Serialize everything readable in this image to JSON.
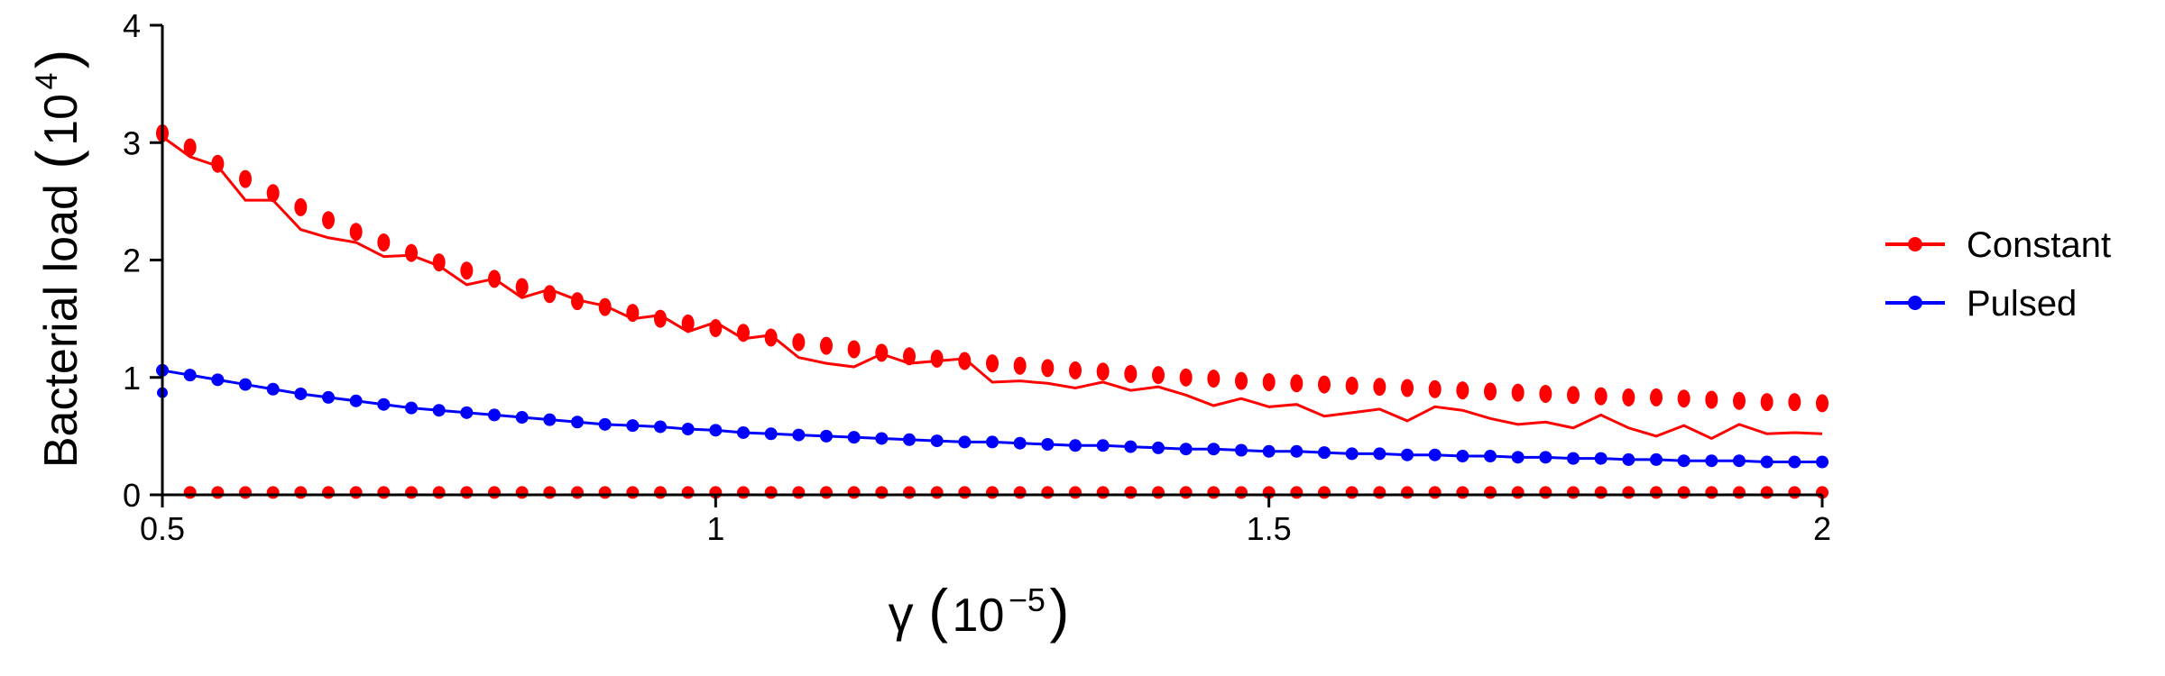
{
  "chart_data": {
    "type": "line",
    "xlabel": {
      "symbol": "γ",
      "open": "(",
      "base": "10",
      "exponent": "−5",
      "close": ")"
    },
    "ylabel": {
      "text": "Bacterial load",
      "open": "(",
      "base": "10",
      "exponent": "4",
      "close": ")"
    },
    "xlim": [
      0.5,
      2
    ],
    "ylim": [
      0,
      4
    ],
    "x_ticks": [
      0.5,
      1,
      1.5,
      2
    ],
    "x_tick_labels": [
      "0.5",
      "1",
      "1.5",
      "2"
    ],
    "y_ticks": [
      0,
      1,
      2,
      3,
      4
    ],
    "y_tick_labels": [
      "0",
      "1",
      "2",
      "3",
      "4"
    ],
    "grid": false,
    "legend_position": "right",
    "x": [
      0.5,
      0.525,
      0.55,
      0.575,
      0.6,
      0.625,
      0.65,
      0.675,
      0.7,
      0.725,
      0.75,
      0.775,
      0.8,
      0.825,
      0.85,
      0.875,
      0.9,
      0.925,
      0.95,
      0.975,
      1.0,
      1.025,
      1.05,
      1.075,
      1.1,
      1.125,
      1.15,
      1.175,
      1.2,
      1.225,
      1.25,
      1.275,
      1.3,
      1.325,
      1.35,
      1.375,
      1.4,
      1.425,
      1.45,
      1.475,
      1.5,
      1.525,
      1.55,
      1.575,
      1.6,
      1.625,
      1.65,
      1.675,
      1.7,
      1.725,
      1.75,
      1.775,
      1.8,
      1.825,
      1.85,
      1.875,
      1.9,
      1.925,
      1.95,
      1.975,
      2.0
    ],
    "series": [
      {
        "name": "Constant",
        "color": "#ff0000",
        "line_values": [
          3.05,
          2.88,
          2.8,
          2.51,
          2.51,
          2.26,
          2.19,
          2.15,
          2.03,
          2.04,
          1.95,
          1.79,
          1.84,
          1.68,
          1.75,
          1.66,
          1.61,
          1.5,
          1.53,
          1.39,
          1.47,
          1.33,
          1.36,
          1.17,
          1.12,
          1.09,
          1.2,
          1.12,
          1.14,
          1.16,
          0.96,
          0.97,
          0.95,
          0.91,
          0.96,
          0.89,
          0.92,
          0.85,
          0.76,
          0.82,
          0.75,
          0.77,
          0.67,
          0.7,
          0.73,
          0.63,
          0.75,
          0.72,
          0.65,
          0.6,
          0.62,
          0.57,
          0.68,
          0.57,
          0.5,
          0.59,
          0.48,
          0.6,
          0.52,
          0.53,
          0.52
        ],
        "upper_markers": [
          3.08,
          2.96,
          2.82,
          2.69,
          2.57,
          2.45,
          2.34,
          2.24,
          2.15,
          2.06,
          1.98,
          1.91,
          1.84,
          1.77,
          1.71,
          1.65,
          1.6,
          1.55,
          1.5,
          1.46,
          1.42,
          1.38,
          1.34,
          1.3,
          1.27,
          1.24,
          1.21,
          1.18,
          1.16,
          1.14,
          1.12,
          1.1,
          1.08,
          1.06,
          1.05,
          1.03,
          1.02,
          1.0,
          0.99,
          0.97,
          0.96,
          0.95,
          0.94,
          0.93,
          0.92,
          0.91,
          0.9,
          0.89,
          0.88,
          0.87,
          0.86,
          0.85,
          0.84,
          0.83,
          0.83,
          0.82,
          0.81,
          0.8,
          0.79,
          0.79,
          0.78
        ],
        "lower_markers": [
          0.02,
          0.02,
          0.02,
          0.02,
          0.02,
          0.02,
          0.02,
          0.02,
          0.02,
          0.02,
          0.02,
          0.02,
          0.02,
          0.02,
          0.02,
          0.02,
          0.02,
          0.02,
          0.02,
          0.02,
          0.02,
          0.02,
          0.02,
          0.02,
          0.02,
          0.02,
          0.02,
          0.02,
          0.02,
          0.02,
          0.02,
          0.02,
          0.02,
          0.02,
          0.02,
          0.02,
          0.02,
          0.02,
          0.02,
          0.02,
          0.02,
          0.02,
          0.02,
          0.02,
          0.02,
          0.02,
          0.02,
          0.02,
          0.02,
          0.02,
          0.02,
          0.02,
          0.02,
          0.02,
          0.02,
          0.02,
          0.02,
          0.02,
          0.02,
          0.02,
          0.02
        ]
      },
      {
        "name": "Pulsed",
        "color": "#0000ff",
        "line_values": [
          1.06,
          1.02,
          0.98,
          0.94,
          0.9,
          0.86,
          0.83,
          0.8,
          0.77,
          0.74,
          0.72,
          0.7,
          0.68,
          0.66,
          0.64,
          0.62,
          0.6,
          0.59,
          0.58,
          0.56,
          0.55,
          0.53,
          0.52,
          0.51,
          0.5,
          0.49,
          0.48,
          0.47,
          0.46,
          0.45,
          0.45,
          0.44,
          0.43,
          0.42,
          0.42,
          0.41,
          0.4,
          0.39,
          0.39,
          0.38,
          0.37,
          0.37,
          0.36,
          0.35,
          0.35,
          0.34,
          0.34,
          0.33,
          0.33,
          0.32,
          0.32,
          0.31,
          0.31,
          0.3,
          0.3,
          0.29,
          0.29,
          0.29,
          0.28,
          0.28,
          0.28
        ],
        "extra_point": {
          "x": 0.5,
          "y": 0.87
        }
      }
    ]
  }
}
